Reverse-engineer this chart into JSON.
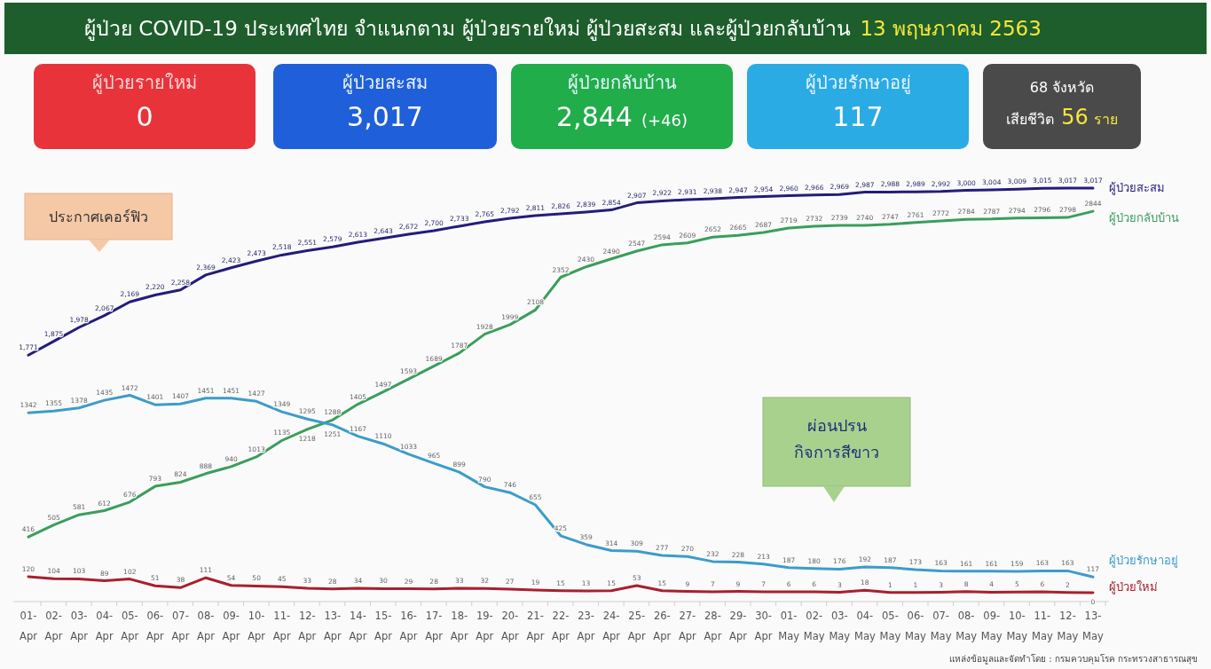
{
  "chart_data": [
    {
      "type": "other",
      "title": "ผู้ป่วย COVID-19 ประเทศไทย จำแนกตาม ผู้ป่วยรายใหม่ ผู้ป่วยสะสม และผู้ป่วยกลับบ้าน",
      "subtitle": "13 พฤษภาคม 2563",
      "categories": [
        "ผู้ป่วยรายใหม่",
        "ผู้ป่วยสะสม",
        "ผู้ป่วยกลับบ้าน",
        "ผู้ป่วยรักษาอยู่",
        "เสียชีวิต"
      ],
      "value_labels": [
        "0",
        "3,017",
        "2,844",
        "117",
        "56"
      ],
      "colors": [
        "#e8333b",
        "#1f5fd9",
        "#20ad4a",
        "#2aabe3",
        "#4a4a4a"
      ],
      "annotations": [
        "(+46)",
        "68 จังหวัด",
        "ราย"
      ]
    },
    {
      "type": "line",
      "data_labels": true,
      "categories": [
        "01-Apr",
        "02-Apr",
        "03-Apr",
        "04-Apr",
        "05-Apr",
        "06-Apr",
        "07-Apr",
        "08-Apr",
        "09-Apr",
        "10-Apr",
        "11-Apr",
        "12-Apr",
        "13-Apr",
        "14-Apr",
        "15-Apr",
        "16-Apr",
        "17-Apr",
        "18-Apr",
        "19-Apr",
        "20-Apr",
        "21-Apr",
        "22-Apr",
        "23-Apr",
        "24-Apr",
        "25-Apr",
        "26-Apr",
        "27-Apr",
        "28-Apr",
        "29-Apr",
        "30-Apr",
        "01-May",
        "02-May",
        "03-May",
        "04-May",
        "05-May",
        "06-May",
        "07-May",
        "08-May",
        "09-May",
        "10-May",
        "11-May",
        "12-May",
        "13-May"
      ],
      "series": [
        {
          "name": "ผู้ป่วยสะสม",
          "color": "#241c7a",
          "values": [
            1771,
            1875,
            1978,
            2067,
            2169,
            2220,
            2258,
            2369,
            2423,
            2473,
            2518,
            2551,
            2579,
            2613,
            2643,
            2672,
            2700,
            2733,
            2765,
            2792,
            2811,
            2826,
            2839,
            2854,
            2907,
            2922,
            2931,
            2938,
            2947,
            2954,
            2960,
            2966,
            2969,
            2987,
            2988,
            2989,
            2992,
            3000,
            3004,
            3009,
            3015,
            3017,
            3017
          ],
          "value_labels": [
            "1,771",
            "1,875",
            "1,978",
            "2,067",
            "2,169",
            "2,220",
            "2,258",
            "2,369",
            "2,423",
            "2,473",
            "2,518",
            "2,551",
            "2,579",
            "2,613",
            "2,643",
            "2,672",
            "2,700",
            "2,733",
            "2,765",
            "2,792",
            "2,811",
            "2,826",
            "2,839",
            "2,854",
            "2,907",
            "2,922",
            "2,931",
            "2,938",
            "2,947",
            "2,954",
            "2,960",
            "2,966",
            "2,969",
            "2,987",
            "2,988",
            "2,989",
            "2,992",
            "3,000",
            "3,004",
            "3,009",
            "3,015",
            "3,017",
            "3,017"
          ]
        },
        {
          "name": "ผู้ป่วยกลับบ้าน",
          "color": "#3a9e5c",
          "values": [
            416,
            505,
            581,
            612,
            676,
            793,
            824,
            888,
            940,
            1013,
            1135,
            1218,
            1288,
            1405,
            1497,
            1593,
            1689,
            1787,
            1928,
            1999,
            2108,
            2352,
            2430,
            2490,
            2547,
            2594,
            2609,
            2652,
            2665,
            2687,
            2719,
            2732,
            2739,
            2740,
            2747,
            2761,
            2772,
            2784,
            2787,
            2794,
            2796,
            2798,
            2844
          ]
        },
        {
          "name": "ผู้ป่วยรักษาอยู่",
          "color": "#3d9cc9",
          "values": [
            1342,
            1355,
            1378,
            1435,
            1472,
            1401,
            1407,
            1451,
            1451,
            1427,
            1349,
            1295,
            1251,
            1167,
            1110,
            1033,
            965,
            899,
            790,
            746,
            655,
            425,
            359,
            314,
            309,
            277,
            270,
            232,
            228,
            213,
            187,
            180,
            176,
            192,
            187,
            173,
            163,
            161,
            161,
            159,
            163,
            163,
            117
          ]
        },
        {
          "name": "ผู้ป่วยใหม่",
          "color": "#a8202e",
          "values": [
            120,
            104,
            103,
            89,
            102,
            51,
            38,
            111,
            54,
            50,
            45,
            33,
            28,
            34,
            30,
            29,
            28,
            33,
            32,
            27,
            19,
            15,
            13,
            15,
            53,
            15,
            9,
            7,
            9,
            7,
            6,
            6,
            3,
            18,
            1,
            1,
            3,
            8,
            4,
            5,
            6,
            2,
            0
          ]
        }
      ],
      "annotations": [
        "ประกาศเคอร์ฟิว",
        "ผ่อนปรน กิจการสีขาว",
        "แหล่งข้อมูลและจัดทำโดย : กรมควบคุมโรค กระทรวงสาธารณสุข"
      ]
    }
  ]
}
